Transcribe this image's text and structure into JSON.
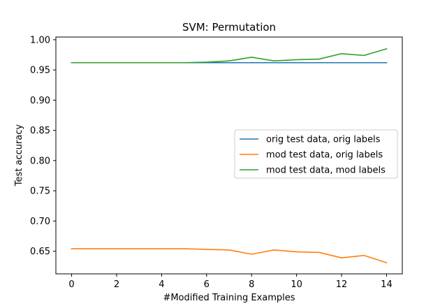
{
  "chart_data": {
    "type": "line",
    "title": "SVM: Permutation",
    "xlabel": "#Modified Training Examples",
    "ylabel": "Test accuracy",
    "xlim": [
      -0.7,
      14.7
    ],
    "ylim": [
      0.6125,
      1.0045
    ],
    "xticks": [
      0,
      2,
      4,
      6,
      8,
      10,
      12,
      14
    ],
    "xtick_labels": [
      "0",
      "2",
      "4",
      "6",
      "8",
      "10",
      "12",
      "14"
    ],
    "yticks": [
      0.65,
      0.7,
      0.75,
      0.8,
      0.85,
      0.9,
      0.95,
      1.0
    ],
    "ytick_labels": [
      "0.65",
      "0.70",
      "0.75",
      "0.80",
      "0.85",
      "0.90",
      "0.95",
      "1.00"
    ],
    "grid": false,
    "legend_position": "center-right",
    "x": [
      0,
      1,
      2,
      3,
      4,
      5,
      6,
      7,
      8,
      9,
      10,
      11,
      12,
      13,
      14
    ],
    "series": [
      {
        "name": "orig test data, orig labels",
        "color": "#1f77b4",
        "values": [
          0.962,
          0.962,
          0.962,
          0.962,
          0.962,
          0.962,
          0.962,
          0.962,
          0.962,
          0.962,
          0.962,
          0.962,
          0.962,
          0.962,
          0.962
        ]
      },
      {
        "name": "mod test data, orig labels",
        "color": "#ff7f0e",
        "values": [
          0.654,
          0.654,
          0.654,
          0.654,
          0.654,
          0.654,
          0.653,
          0.652,
          0.645,
          0.652,
          0.649,
          0.648,
          0.639,
          0.643,
          0.631
        ]
      },
      {
        "name": "mod test data, mod labels",
        "color": "#2ca02c",
        "values": [
          0.962,
          0.962,
          0.962,
          0.962,
          0.962,
          0.962,
          0.963,
          0.965,
          0.971,
          0.965,
          0.967,
          0.968,
          0.977,
          0.974,
          0.985
        ]
      }
    ]
  }
}
